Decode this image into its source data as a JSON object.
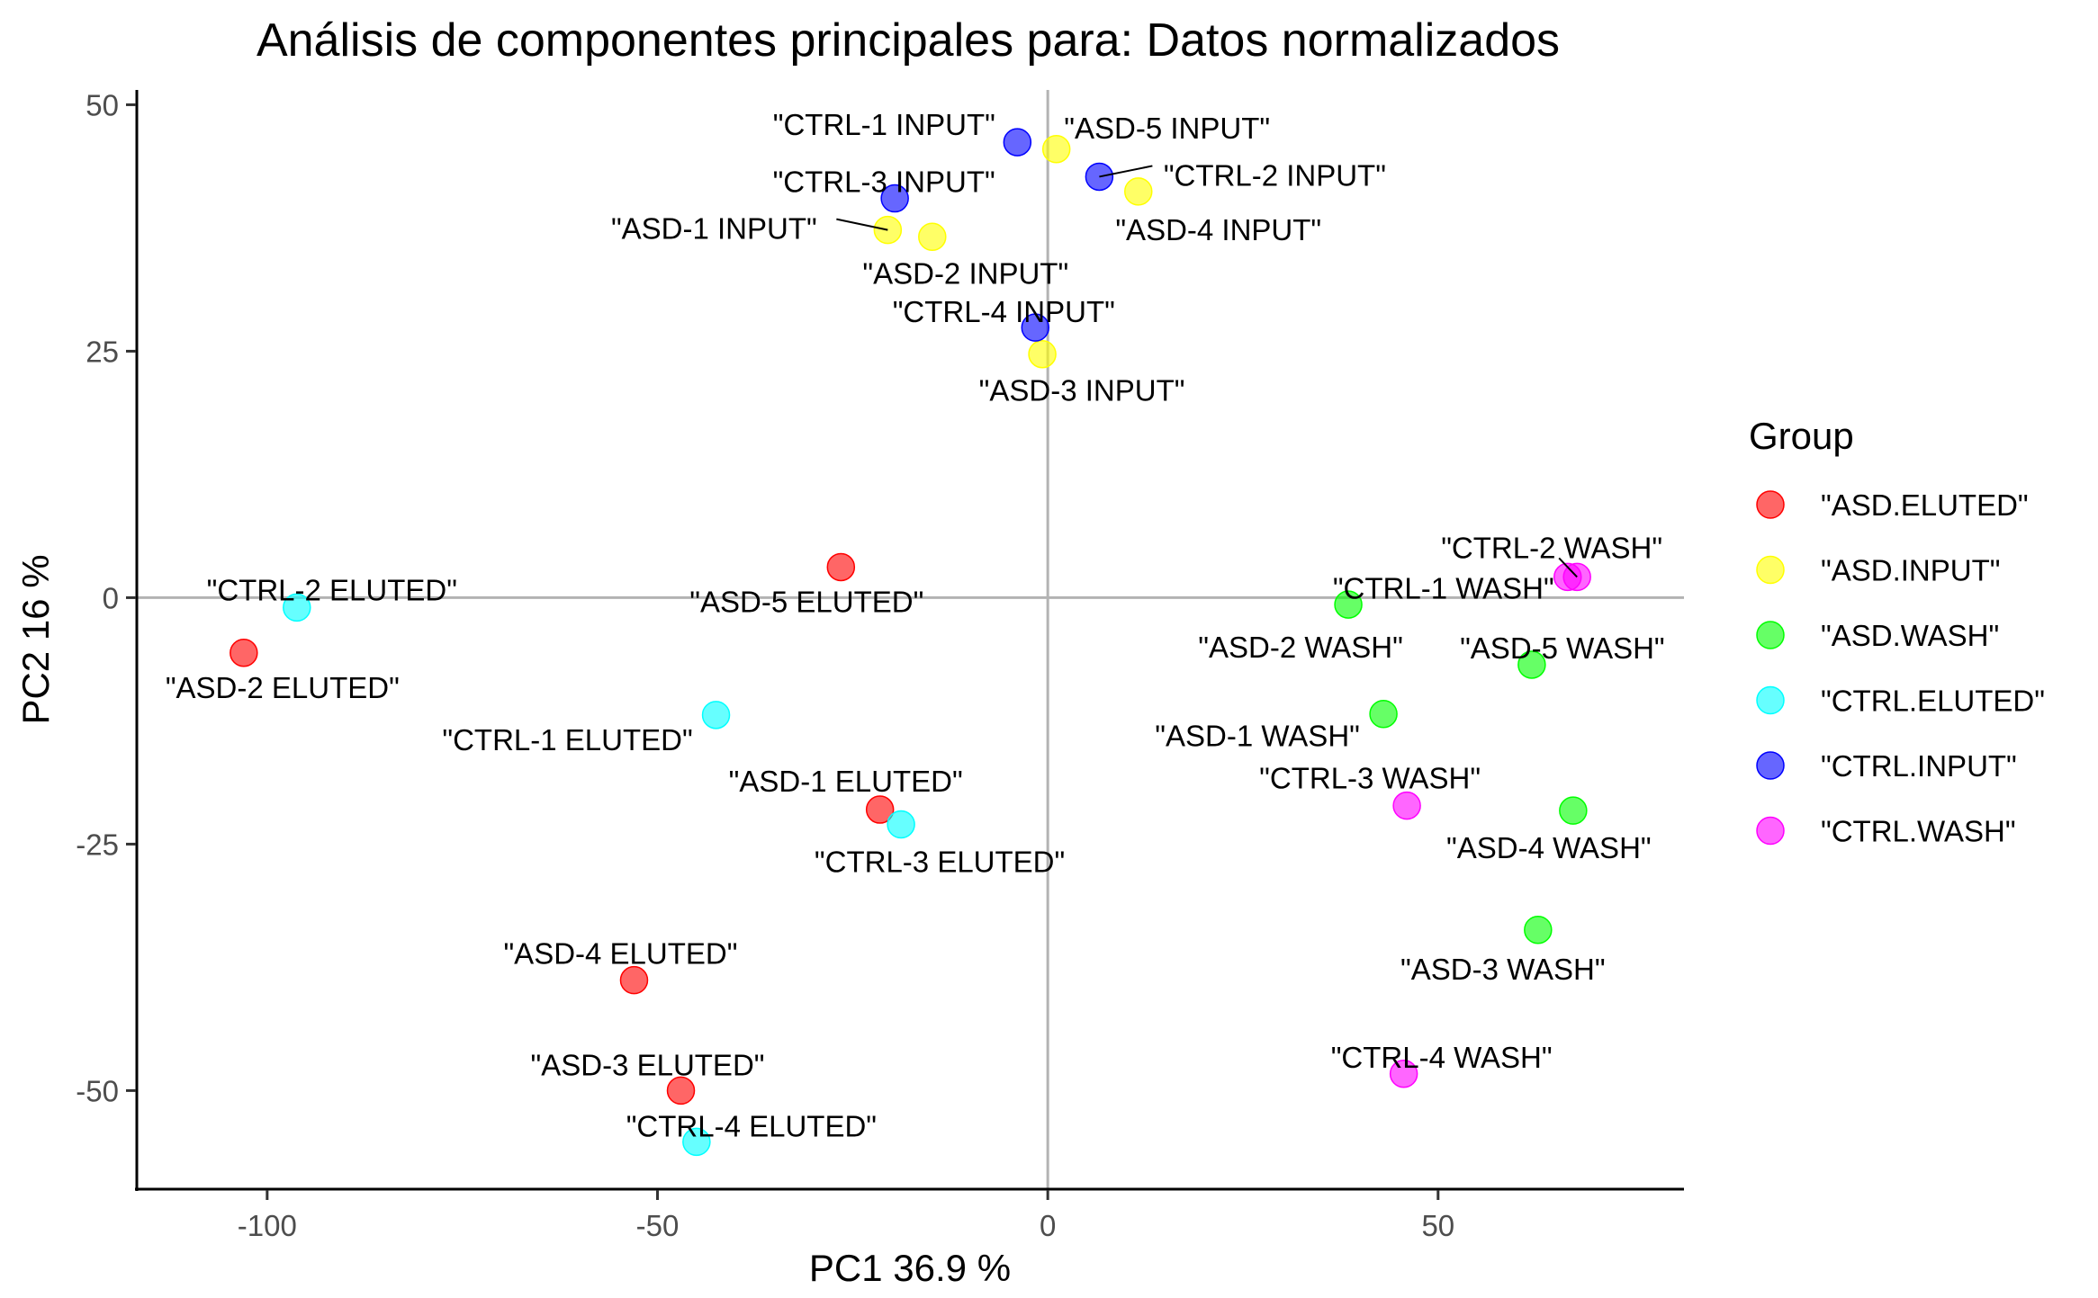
{
  "chart_data": {
    "type": "scatter",
    "title": "Análisis de componentes principales para:  Datos normalizados",
    "xlabel": "PC1 36.9 %",
    "ylabel": "PC2 16 %",
    "xlim": [
      -116.7,
      81.5
    ],
    "ylim": [
      -60,
      51.5
    ],
    "x_ticks": [
      -100,
      -50,
      0,
      50
    ],
    "y_ticks": [
      50,
      25,
      0,
      -25,
      -50
    ],
    "x_tick_labels": [
      "-100",
      "-50",
      "0",
      "50"
    ],
    "y_tick_labels": [
      "50",
      "25",
      "0",
      "-25",
      "-50"
    ],
    "reference_lines": {
      "x": 0,
      "y": 0
    },
    "grid": false,
    "legend_position": "right",
    "legend": {
      "title": "Group",
      "entries": [
        {
          "label": "\"ASD.ELUTED\"",
          "group": "ASD.ELUTED"
        },
        {
          "label": "\"ASD.INPUT\"",
          "group": "ASD.INPUT"
        },
        {
          "label": "\"ASD.WASH\"",
          "group": "ASD.WASH"
        },
        {
          "label": "\"CTRL.ELUTED\"",
          "group": "CTRL.ELUTED"
        },
        {
          "label": "\"CTRL.INPUT\"",
          "group": "CTRL.INPUT"
        },
        {
          "label": "\"CTRL.WASH\"",
          "group": "CTRL.WASH"
        }
      ]
    },
    "colors": {
      "ASD.ELUTED": "#ff0000",
      "ASD.INPUT": "#ffff00",
      "ASD.WASH": "#00ff00",
      "CTRL.ELUTED": "#00ffff",
      "CTRL.INPUT": "#0000ff",
      "CTRL.WASH": "#ff00ff"
    },
    "points": [
      {
        "label": "\"ASD-1 ELUTED\"",
        "group": "ASD.ELUTED",
        "x": -21.5,
        "y": -21.5
      },
      {
        "label": "\"ASD-2 ELUTED\"",
        "group": "ASD.ELUTED",
        "x": -103,
        "y": -5.6
      },
      {
        "label": "\"ASD-3 ELUTED\"",
        "group": "ASD.ELUTED",
        "x": -47,
        "y": -50
      },
      {
        "label": "\"ASD-4 ELUTED\"",
        "group": "ASD.ELUTED",
        "x": -53,
        "y": -38.8
      },
      {
        "label": "\"ASD-5 ELUTED\"",
        "group": "ASD.ELUTED",
        "x": -26.5,
        "y": 3.1
      },
      {
        "label": "\"ASD-1 INPUT\"",
        "group": "ASD.INPUT",
        "x": -20.5,
        "y": 37.3
      },
      {
        "label": "\"ASD-2 INPUT\"",
        "group": "ASD.INPUT",
        "x": -14.8,
        "y": 36.6
      },
      {
        "label": "\"ASD-3 INPUT\"",
        "group": "ASD.INPUT",
        "x": -0.7,
        "y": 24.7
      },
      {
        "label": "\"ASD-4 INPUT\"",
        "group": "ASD.INPUT",
        "x": 11.6,
        "y": 41.2
      },
      {
        "label": "\"ASD-5 INPUT\"",
        "group": "ASD.INPUT",
        "x": 1.1,
        "y": 45.5
      },
      {
        "label": "\"ASD-1 WASH\"",
        "group": "ASD.WASH",
        "x": 43,
        "y": -11.8
      },
      {
        "label": "\"ASD-2 WASH\"",
        "group": "ASD.WASH",
        "x": 38.5,
        "y": -0.7
      },
      {
        "label": "\"ASD-3 WASH\"",
        "group": "ASD.WASH",
        "x": 62.8,
        "y": -33.7
      },
      {
        "label": "\"ASD-4 WASH\"",
        "group": "ASD.WASH",
        "x": 67.3,
        "y": -21.6
      },
      {
        "label": "\"ASD-5 WASH\"",
        "group": "ASD.WASH",
        "x": 62,
        "y": -6.8
      },
      {
        "label": "\"CTRL-1 ELUTED\"",
        "group": "CTRL.ELUTED",
        "x": -42.5,
        "y": -11.9
      },
      {
        "label": "\"CTRL-2 ELUTED\"",
        "group": "CTRL.ELUTED",
        "x": -96.2,
        "y": -1
      },
      {
        "label": "\"CTRL-3 ELUTED\"",
        "group": "CTRL.ELUTED",
        "x": -18.8,
        "y": -23
      },
      {
        "label": "\"CTRL-4 ELUTED\"",
        "group": "CTRL.ELUTED",
        "x": -45,
        "y": -55.2
      },
      {
        "label": "\"CTRL-1 INPUT\"",
        "group": "CTRL.INPUT",
        "x": -3.9,
        "y": 46.2
      },
      {
        "label": "\"CTRL-2 INPUT\"",
        "group": "CTRL.INPUT",
        "x": 6.6,
        "y": 42.7
      },
      {
        "label": "\"CTRL-3 INPUT\"",
        "group": "CTRL.INPUT",
        "x": -19.6,
        "y": 40.5
      },
      {
        "label": "\"CTRL-4 INPUT\"",
        "group": "CTRL.INPUT",
        "x": -1.6,
        "y": 27.4
      },
      {
        "label": "\"CTRL-1 WASH\"",
        "group": "CTRL.WASH",
        "x": 66.6,
        "y": 2.1
      },
      {
        "label": "\"CTRL-2 WASH\"",
        "group": "CTRL.WASH",
        "x": 67.8,
        "y": 2.1
      },
      {
        "label": "\"CTRL-3 WASH\"",
        "group": "CTRL.WASH",
        "x": 46,
        "y": -21.1
      },
      {
        "label": "\"CTRL-4 WASH\"",
        "group": "CTRL.WASH",
        "x": 45.6,
        "y": -48.3
      }
    ]
  }
}
